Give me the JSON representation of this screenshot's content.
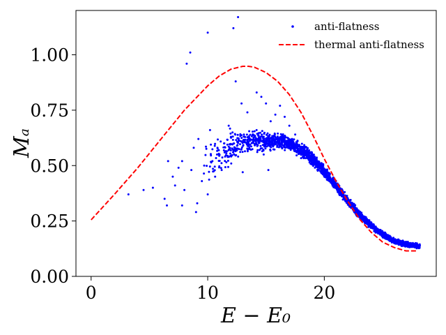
{
  "chart_data": {
    "type": "scatter",
    "title": "",
    "xlabel": "E − E₀",
    "ylabel": "Mₐ",
    "xlim": [
      -1.3,
      29.6
    ],
    "ylim": [
      0.0,
      1.2
    ],
    "xticks": [
      0,
      10,
      20
    ],
    "xtick_labels": [
      "0",
      "10",
      "20"
    ],
    "yticks": [
      0.0,
      0.25,
      0.5,
      0.75,
      1.0
    ],
    "ytick_labels": [
      "0.00",
      "0.25",
      "0.50",
      "0.75",
      "1.00"
    ],
    "grid": false,
    "legend": {
      "placement": "top-right",
      "entries": [
        "anti-flatness",
        "thermal anti-flatness"
      ]
    },
    "series": [
      {
        "name": "anti-flatness",
        "kind": "scatter",
        "color": "#0000ff",
        "points": [
          [
            3.2,
            0.37
          ],
          [
            4.5,
            0.39
          ],
          [
            5.3,
            0.4
          ],
          [
            6.3,
            0.35
          ],
          [
            6.5,
            0.32
          ],
          [
            6.6,
            0.52
          ],
          [
            7.0,
            0.45
          ],
          [
            7.2,
            0.41
          ],
          [
            7.5,
            0.49
          ],
          [
            7.8,
            0.32
          ],
          [
            7.8,
            0.52
          ],
          [
            8.0,
            0.39
          ],
          [
            8.2,
            0.96
          ],
          [
            8.5,
            1.01
          ],
          [
            8.6,
            0.48
          ],
          [
            8.8,
            0.58
          ],
          [
            9.0,
            0.29
          ],
          [
            9.1,
            0.33
          ],
          [
            9.2,
            0.62
          ],
          [
            9.5,
            0.43
          ],
          [
            9.7,
            0.5
          ],
          [
            10.0,
            1.1
          ],
          [
            10.0,
            0.37
          ],
          [
            10.2,
            0.66
          ],
          [
            10.4,
            0.52
          ],
          [
            10.8,
            0.55
          ],
          [
            11.2,
            0.48
          ],
          [
            11.8,
            0.68
          ],
          [
            12.2,
            1.12
          ],
          [
            12.4,
            0.88
          ],
          [
            12.6,
            1.17
          ],
          [
            12.9,
            0.78
          ],
          [
            13.4,
            0.74
          ],
          [
            14.2,
            0.83
          ],
          [
            14.6,
            0.81
          ],
          [
            15.0,
            0.78
          ],
          [
            15.4,
            0.7
          ],
          [
            15.8,
            0.73
          ],
          [
            16.2,
            0.77
          ],
          [
            16.6,
            0.72
          ],
          [
            17.0,
            0.68
          ],
          [
            17.5,
            0.64
          ],
          [
            14.8,
            0.55
          ],
          [
            15.2,
            0.48
          ],
          [
            13.0,
            0.47
          ],
          [
            11.4,
            0.6
          ],
          [
            12.0,
            0.63
          ]
        ],
        "band": {
          "x": [
            9.5,
            11,
            12,
            13,
            14,
            15,
            16,
            17,
            18,
            19,
            20,
            21,
            22,
            23,
            24,
            25,
            26,
            27,
            28.2
          ],
          "center": [
            0.5,
            0.55,
            0.58,
            0.6,
            0.61,
            0.61,
            0.61,
            0.6,
            0.57,
            0.53,
            0.47,
            0.41,
            0.34,
            0.28,
            0.23,
            0.19,
            0.16,
            0.145,
            0.135
          ],
          "spread": [
            0.16,
            0.13,
            0.11,
            0.09,
            0.07,
            0.055,
            0.05,
            0.045,
            0.045,
            0.04,
            0.035,
            0.03,
            0.025,
            0.022,
            0.02,
            0.018,
            0.016,
            0.015,
            0.015
          ]
        },
        "band_point_count": 2600
      },
      {
        "name": "thermal anti-flatness",
        "kind": "line",
        "style": "dashed",
        "color": "#ff0000",
        "x": [
          0,
          2,
          4,
          6,
          8,
          10,
          11,
          12,
          13,
          13.5,
          14,
          15,
          16,
          17,
          18,
          19,
          20,
          21,
          22,
          23,
          24,
          25,
          26,
          27,
          28
        ],
        "y": [
          0.255,
          0.37,
          0.49,
          0.62,
          0.75,
          0.86,
          0.905,
          0.935,
          0.948,
          0.948,
          0.944,
          0.92,
          0.88,
          0.82,
          0.74,
          0.64,
          0.53,
          0.43,
          0.34,
          0.26,
          0.2,
          0.155,
          0.13,
          0.115,
          0.115
        ]
      }
    ]
  }
}
